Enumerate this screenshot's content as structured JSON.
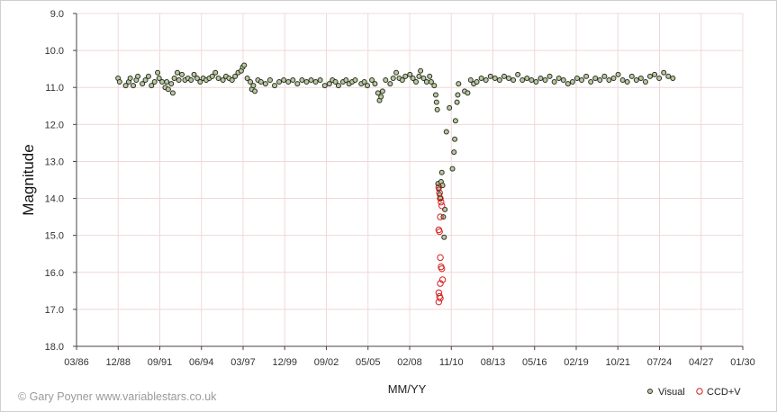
{
  "credit": "© Gary Poyner  www.variablestars.co.uk",
  "chart_data": {
    "type": "scatter",
    "title": "",
    "xlabel": "MM/YY",
    "ylabel": "Magnitude",
    "x_unit": "year",
    "xlim": [
      1986.167,
      2030.0
    ],
    "ylim": [
      18.0,
      9.0
    ],
    "y_inverted": true,
    "x_ticks": [
      "03/86",
      "12/88",
      "09/91",
      "06/94",
      "03/97",
      "12/99",
      "09/02",
      "05/05",
      "02/08",
      "11/10",
      "08/13",
      "05/16",
      "02/19",
      "10/21",
      "07/24",
      "04/27",
      "01/30"
    ],
    "y_ticks": [
      "9.0",
      "10.0",
      "11.0",
      "12.0",
      "13.0",
      "14.0",
      "15.0",
      "16.0",
      "17.0",
      "18.0"
    ],
    "grid": true,
    "legend_position": "bottom-right",
    "series": [
      {
        "name": "Visual",
        "marker": "circle",
        "color": "#2a2a2a",
        "fill": "#b8cc9a",
        "points": [
          [
            1988.9,
            10.75
          ],
          [
            1989.0,
            10.85
          ],
          [
            1989.4,
            10.95
          ],
          [
            1989.6,
            10.85
          ],
          [
            1989.7,
            10.75
          ],
          [
            1989.9,
            10.95
          ],
          [
            1990.1,
            10.8
          ],
          [
            1990.2,
            10.7
          ],
          [
            1990.5,
            10.9
          ],
          [
            1990.7,
            10.8
          ],
          [
            1990.9,
            10.7
          ],
          [
            1991.1,
            10.95
          ],
          [
            1991.3,
            10.85
          ],
          [
            1991.5,
            10.6
          ],
          [
            1991.6,
            10.75
          ],
          [
            1991.8,
            10.85
          ],
          [
            1992.0,
            11.0
          ],
          [
            1992.1,
            10.85
          ],
          [
            1992.2,
            11.05
          ],
          [
            1992.4,
            10.9
          ],
          [
            1992.5,
            11.15
          ],
          [
            1992.6,
            10.75
          ],
          [
            1992.8,
            10.6
          ],
          [
            1992.9,
            10.8
          ],
          [
            1993.1,
            10.65
          ],
          [
            1993.3,
            10.8
          ],
          [
            1993.5,
            10.75
          ],
          [
            1993.7,
            10.8
          ],
          [
            1993.9,
            10.65
          ],
          [
            1994.1,
            10.75
          ],
          [
            1994.3,
            10.85
          ],
          [
            1994.5,
            10.75
          ],
          [
            1994.7,
            10.8
          ],
          [
            1994.9,
            10.75
          ],
          [
            1995.1,
            10.7
          ],
          [
            1995.3,
            10.6
          ],
          [
            1995.5,
            10.75
          ],
          [
            1995.8,
            10.8
          ],
          [
            1996.0,
            10.7
          ],
          [
            1996.2,
            10.75
          ],
          [
            1996.4,
            10.8
          ],
          [
            1996.6,
            10.7
          ],
          [
            1996.8,
            10.6
          ],
          [
            1997.0,
            10.55
          ],
          [
            1997.1,
            10.45
          ],
          [
            1997.2,
            10.4
          ],
          [
            1997.4,
            10.75
          ],
          [
            1997.6,
            10.85
          ],
          [
            1997.7,
            11.05
          ],
          [
            1997.8,
            10.95
          ],
          [
            1997.9,
            11.1
          ],
          [
            1998.1,
            10.8
          ],
          [
            1998.3,
            10.85
          ],
          [
            1998.6,
            10.9
          ],
          [
            1998.9,
            10.8
          ],
          [
            1999.2,
            10.95
          ],
          [
            1999.5,
            10.85
          ],
          [
            1999.8,
            10.8
          ],
          [
            2000.1,
            10.85
          ],
          [
            2000.4,
            10.8
          ],
          [
            2000.7,
            10.9
          ],
          [
            2001.0,
            10.8
          ],
          [
            2001.3,
            10.85
          ],
          [
            2001.6,
            10.8
          ],
          [
            2001.9,
            10.85
          ],
          [
            2002.2,
            10.8
          ],
          [
            2002.5,
            10.95
          ],
          [
            2002.8,
            10.9
          ],
          [
            2003.0,
            10.8
          ],
          [
            2003.2,
            10.85
          ],
          [
            2003.4,
            10.95
          ],
          [
            2003.7,
            10.85
          ],
          [
            2003.9,
            10.8
          ],
          [
            2004.1,
            10.9
          ],
          [
            2004.3,
            10.85
          ],
          [
            2004.5,
            10.8
          ],
          [
            2004.9,
            10.9
          ],
          [
            2005.1,
            10.85
          ],
          [
            2005.3,
            10.95
          ],
          [
            2005.6,
            10.8
          ],
          [
            2005.8,
            10.9
          ],
          [
            2006.0,
            11.15
          ],
          [
            2006.1,
            11.35
          ],
          [
            2006.2,
            11.25
          ],
          [
            2006.3,
            11.1
          ],
          [
            2006.5,
            10.8
          ],
          [
            2006.8,
            10.9
          ],
          [
            2007.0,
            10.75
          ],
          [
            2007.2,
            10.6
          ],
          [
            2007.4,
            10.75
          ],
          [
            2007.6,
            10.8
          ],
          [
            2007.8,
            10.7
          ],
          [
            2008.1,
            10.65
          ],
          [
            2008.3,
            10.75
          ],
          [
            2008.5,
            10.85
          ],
          [
            2008.7,
            10.7
          ],
          [
            2008.8,
            10.55
          ],
          [
            2009.0,
            10.75
          ],
          [
            2009.2,
            10.85
          ],
          [
            2009.4,
            10.7
          ],
          [
            2009.5,
            10.85
          ],
          [
            2009.7,
            10.95
          ],
          [
            2009.8,
            11.2
          ],
          [
            2009.85,
            11.4
          ],
          [
            2009.9,
            11.6
          ],
          [
            2009.95,
            13.6
          ],
          [
            2010.0,
            13.75
          ],
          [
            2010.05,
            13.9
          ],
          [
            2010.1,
            14.0
          ],
          [
            2010.15,
            13.55
          ],
          [
            2010.2,
            13.3
          ],
          [
            2010.25,
            13.65
          ],
          [
            2010.3,
            14.5
          ],
          [
            2010.35,
            15.05
          ],
          [
            2010.4,
            14.3
          ],
          [
            2010.5,
            12.2
          ],
          [
            2010.7,
            11.55
          ],
          [
            2010.9,
            13.2
          ],
          [
            2011.0,
            12.75
          ],
          [
            2011.05,
            12.4
          ],
          [
            2011.1,
            11.9
          ],
          [
            2011.2,
            11.4
          ],
          [
            2011.25,
            11.2
          ],
          [
            2011.3,
            10.9
          ],
          [
            2011.7,
            11.1
          ],
          [
            2011.9,
            11.15
          ],
          [
            2012.1,
            10.8
          ],
          [
            2012.3,
            10.9
          ],
          [
            2012.5,
            10.85
          ],
          [
            2012.8,
            10.75
          ],
          [
            2013.1,
            10.8
          ],
          [
            2013.4,
            10.7
          ],
          [
            2013.7,
            10.75
          ],
          [
            2014.0,
            10.8
          ],
          [
            2014.3,
            10.7
          ],
          [
            2014.6,
            10.75
          ],
          [
            2014.9,
            10.8
          ],
          [
            2015.2,
            10.65
          ],
          [
            2015.5,
            10.8
          ],
          [
            2015.8,
            10.75
          ],
          [
            2016.1,
            10.8
          ],
          [
            2016.4,
            10.85
          ],
          [
            2016.7,
            10.75
          ],
          [
            2017.0,
            10.8
          ],
          [
            2017.3,
            10.7
          ],
          [
            2017.6,
            10.85
          ],
          [
            2017.9,
            10.75
          ],
          [
            2018.2,
            10.8
          ],
          [
            2018.5,
            10.9
          ],
          [
            2018.8,
            10.85
          ],
          [
            2019.1,
            10.75
          ],
          [
            2019.4,
            10.8
          ],
          [
            2019.7,
            10.7
          ],
          [
            2020.0,
            10.85
          ],
          [
            2020.3,
            10.75
          ],
          [
            2020.6,
            10.8
          ],
          [
            2020.9,
            10.7
          ],
          [
            2021.2,
            10.8
          ],
          [
            2021.5,
            10.75
          ],
          [
            2021.8,
            10.65
          ],
          [
            2022.1,
            10.8
          ],
          [
            2022.4,
            10.85
          ],
          [
            2022.7,
            10.7
          ],
          [
            2023.0,
            10.8
          ],
          [
            2023.3,
            10.75
          ],
          [
            2023.6,
            10.85
          ],
          [
            2023.9,
            10.7
          ],
          [
            2024.2,
            10.65
          ],
          [
            2024.5,
            10.75
          ],
          [
            2024.8,
            10.6
          ],
          [
            2025.1,
            10.7
          ],
          [
            2025.4,
            10.75
          ]
        ]
      },
      {
        "name": "CCD+V",
        "marker": "open-circle",
        "color": "#d42020",
        "points": [
          [
            2010.0,
            13.7
          ],
          [
            2010.05,
            13.85
          ],
          [
            2010.1,
            14.0
          ],
          [
            2010.15,
            14.1
          ],
          [
            2010.2,
            14.2
          ],
          [
            2010.1,
            14.5
          ],
          [
            2010.0,
            14.85
          ],
          [
            2010.05,
            14.9
          ],
          [
            2010.1,
            15.6
          ],
          [
            2010.15,
            15.85
          ],
          [
            2010.2,
            15.9
          ],
          [
            2010.25,
            16.2
          ],
          [
            2010.1,
            16.3
          ],
          [
            2010.0,
            16.55
          ],
          [
            2010.05,
            16.65
          ],
          [
            2010.1,
            16.7
          ],
          [
            2010.0,
            16.8
          ]
        ]
      }
    ]
  }
}
